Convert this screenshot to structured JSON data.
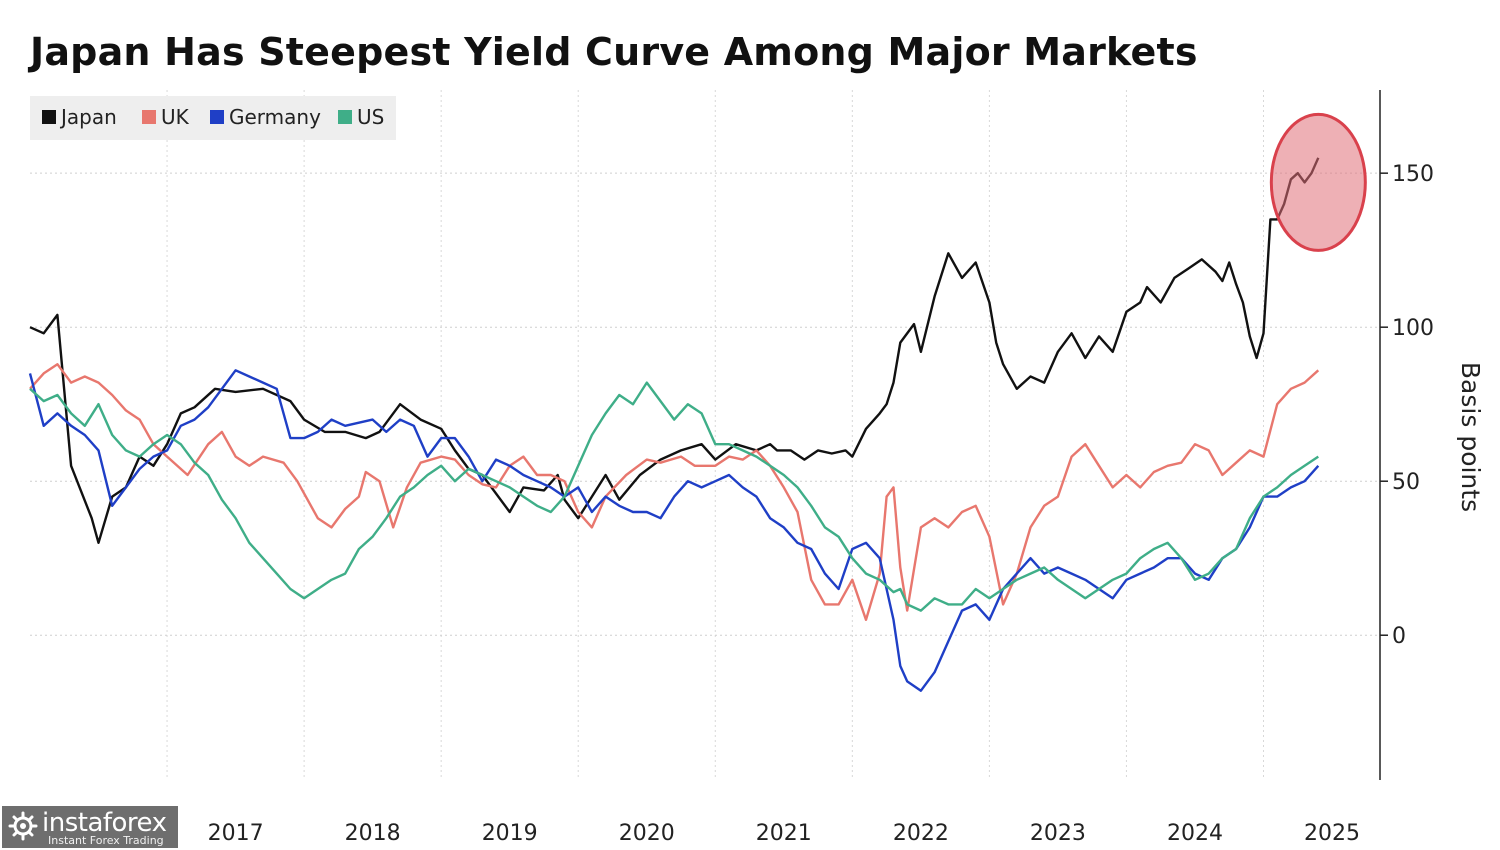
{
  "chart_data": {
    "type": "line",
    "title": "Japan Has Steepest Yield Curve Among Major Markets",
    "ylabel": "Basis points",
    "ylim": [
      -47,
      177
    ],
    "xlim": [
      2016.0,
      2025.85
    ],
    "y_ticks": [
      0,
      50,
      100,
      150
    ],
    "x_ticks": [
      "2017",
      "2018",
      "2019",
      "2020",
      "2021",
      "2022",
      "2023",
      "2024",
      "2025"
    ],
    "grid": true,
    "legend_position": "top-left",
    "y_axis_position": "right",
    "annotation": {
      "type": "circle",
      "x": 2025.4,
      "y": 147,
      "color": "#e07078"
    },
    "series": [
      {
        "name": "Japan",
        "color": "#111111",
        "x": [
          2016.0,
          2016.1,
          2016.2,
          2016.3,
          2016.45,
          2016.5,
          2016.6,
          2016.7,
          2016.8,
          2016.9,
          2017.0,
          2017.1,
          2017.2,
          2017.35,
          2017.5,
          2017.7,
          2017.9,
          2018.0,
          2018.15,
          2018.3,
          2018.45,
          2018.55,
          2018.7,
          2018.85,
          2019.0,
          2019.1,
          2019.2,
          2019.3,
          2019.5,
          2019.6,
          2019.75,
          2019.85,
          2019.9,
          2020.0,
          2020.1,
          2020.2,
          2020.3,
          2020.45,
          2020.6,
          2020.75,
          2020.9,
          2021.0,
          2021.15,
          2021.3,
          2021.4,
          2021.45,
          2021.55,
          2021.65,
          2021.75,
          2021.85,
          2021.95,
          2022.0,
          2022.1,
          2022.2,
          2022.25,
          2022.3,
          2022.35,
          2022.45,
          2022.5,
          2022.6,
          2022.7,
          2022.8,
          2022.9,
          2023.0,
          2023.05,
          2023.1,
          2023.2,
          2023.3,
          2023.4,
          2023.5,
          2023.6,
          2023.7,
          2023.8,
          2023.9,
          2024.0,
          2024.1,
          2024.15,
          2024.25,
          2024.35,
          2024.45,
          2024.55,
          2024.65,
          2024.7,
          2024.75,
          2024.8,
          2024.85,
          2024.9,
          2024.95,
          2025.0,
          2025.05,
          2025.1,
          2025.15,
          2025.2,
          2025.25,
          2025.3,
          2025.35,
          2025.4
        ],
        "y": [
          100,
          98,
          104,
          55,
          38,
          30,
          45,
          48,
          58,
          55,
          62,
          72,
          74,
          80,
          79,
          80,
          76,
          70,
          66,
          66,
          64,
          66,
          75,
          70,
          67,
          60,
          54,
          52,
          40,
          48,
          47,
          52,
          44,
          38,
          45,
          52,
          44,
          52,
          57,
          60,
          62,
          57,
          62,
          60,
          62,
          60,
          60,
          57,
          60,
          59,
          60,
          58,
          67,
          72,
          75,
          82,
          95,
          101,
          92,
          110,
          124,
          116,
          121,
          108,
          95,
          88,
          80,
          84,
          82,
          92,
          98,
          90,
          97,
          92,
          105,
          108,
          113,
          108,
          116,
          119,
          122,
          118,
          115,
          121,
          114,
          108,
          97,
          90,
          98,
          135,
          135,
          140,
          148,
          150,
          147,
          150,
          155
        ]
      },
      {
        "name": "UK",
        "color": "#e8776e",
        "x": [
          2016.0,
          2016.1,
          2016.2,
          2016.3,
          2016.4,
          2016.5,
          2016.6,
          2016.7,
          2016.8,
          2016.9,
          2017.0,
          2017.15,
          2017.3,
          2017.4,
          2017.5,
          2017.6,
          2017.7,
          2017.85,
          2017.95,
          2018.1,
          2018.2,
          2018.3,
          2018.4,
          2018.45,
          2018.55,
          2018.65,
          2018.75,
          2018.85,
          2019.0,
          2019.1,
          2019.2,
          2019.3,
          2019.4,
          2019.5,
          2019.6,
          2019.7,
          2019.8,
          2019.9,
          2020.0,
          2020.1,
          2020.2,
          2020.35,
          2020.5,
          2020.6,
          2020.75,
          2020.85,
          2021.0,
          2021.1,
          2021.2,
          2021.3,
          2021.4,
          2021.5,
          2021.6,
          2021.7,
          2021.8,
          2021.9,
          2022.0,
          2022.1,
          2022.2,
          2022.25,
          2022.3,
          2022.35,
          2022.4,
          2022.5,
          2022.6,
          2022.7,
          2022.8,
          2022.9,
          2023.0,
          2023.1,
          2023.2,
          2023.3,
          2023.4,
          2023.5,
          2023.6,
          2023.7,
          2023.8,
          2023.9,
          2024.0,
          2024.1,
          2024.2,
          2024.3,
          2024.4,
          2024.5,
          2024.6,
          2024.7,
          2024.8,
          2024.9,
          2025.0,
          2025.1,
          2025.2,
          2025.3,
          2025.4
        ],
        "y": [
          80,
          85,
          88,
          82,
          84,
          82,
          78,
          73,
          70,
          62,
          58,
          52,
          62,
          66,
          58,
          55,
          58,
          56,
          50,
          38,
          35,
          41,
          45,
          53,
          50,
          35,
          48,
          56,
          58,
          57,
          52,
          49,
          48,
          55,
          58,
          52,
          52,
          50,
          40,
          35,
          45,
          52,
          57,
          56,
          58,
          55,
          55,
          58,
          57,
          60,
          55,
          48,
          40,
          18,
          10,
          10,
          18,
          5,
          20,
          45,
          48,
          22,
          8,
          35,
          38,
          35,
          40,
          42,
          32,
          10,
          20,
          35,
          42,
          45,
          58,
          62,
          55,
          48,
          52,
          48,
          53,
          55,
          56,
          62,
          60,
          52,
          56,
          60,
          58,
          75,
          80,
          82,
          86
        ]
      },
      {
        "name": "Germany",
        "color": "#1f3fc6",
        "x": [
          2016.0,
          2016.1,
          2016.2,
          2016.3,
          2016.4,
          2016.5,
          2016.6,
          2016.7,
          2016.8,
          2016.9,
          2017.0,
          2017.1,
          2017.2,
          2017.3,
          2017.4,
          2017.5,
          2017.6,
          2017.7,
          2017.8,
          2017.9,
          2018.0,
          2018.1,
          2018.2,
          2018.3,
          2018.4,
          2018.5,
          2018.6,
          2018.7,
          2018.8,
          2018.9,
          2019.0,
          2019.1,
          2019.2,
          2019.3,
          2019.4,
          2019.5,
          2019.6,
          2019.7,
          2019.8,
          2019.9,
          2020.0,
          2020.1,
          2020.2,
          2020.3,
          2020.4,
          2020.5,
          2020.6,
          2020.7,
          2020.8,
          2020.9,
          2021.0,
          2021.1,
          2021.2,
          2021.3,
          2021.4,
          2021.5,
          2021.6,
          2021.7,
          2021.8,
          2021.9,
          2022.0,
          2022.1,
          2022.2,
          2022.3,
          2022.35,
          2022.4,
          2022.5,
          2022.6,
          2022.7,
          2022.8,
          2022.9,
          2023.0,
          2023.1,
          2023.2,
          2023.3,
          2023.4,
          2023.5,
          2023.6,
          2023.7,
          2023.8,
          2023.9,
          2024.0,
          2024.1,
          2024.2,
          2024.3,
          2024.4,
          2024.5,
          2024.6,
          2024.7,
          2024.8,
          2024.9,
          2025.0,
          2025.1,
          2025.2,
          2025.3,
          2025.4
        ],
        "y": [
          85,
          68,
          72,
          68,
          65,
          60,
          42,
          48,
          54,
          58,
          60,
          68,
          70,
          74,
          80,
          86,
          84,
          82,
          80,
          64,
          64,
          66,
          70,
          68,
          69,
          70,
          66,
          70,
          68,
          58,
          64,
          64,
          58,
          50,
          57,
          55,
          52,
          50,
          48,
          45,
          48,
          40,
          45,
          42,
          40,
          40,
          38,
          45,
          50,
          48,
          50,
          52,
          48,
          45,
          38,
          35,
          30,
          28,
          20,
          15,
          28,
          30,
          25,
          5,
          -10,
          -15,
          -18,
          -12,
          -2,
          8,
          10,
          5,
          15,
          20,
          25,
          20,
          22,
          20,
          18,
          15,
          12,
          18,
          20,
          22,
          25,
          25,
          20,
          18,
          25,
          28,
          35,
          45,
          45,
          48,
          50,
          55
        ]
      },
      {
        "name": "US",
        "color": "#3fae88",
        "x": [
          2016.0,
          2016.1,
          2016.2,
          2016.3,
          2016.4,
          2016.5,
          2016.6,
          2016.7,
          2016.8,
          2016.9,
          2017.0,
          2017.1,
          2017.2,
          2017.3,
          2017.4,
          2017.5,
          2017.6,
          2017.7,
          2017.8,
          2017.9,
          2018.0,
          2018.1,
          2018.2,
          2018.3,
          2018.4,
          2018.5,
          2018.6,
          2018.7,
          2018.8,
          2018.9,
          2019.0,
          2019.1,
          2019.2,
          2019.3,
          2019.4,
          2019.5,
          2019.6,
          2019.7,
          2019.8,
          2019.9,
          2020.0,
          2020.1,
          2020.2,
          2020.3,
          2020.4,
          2020.5,
          2020.6,
          2020.7,
          2020.8,
          2020.9,
          2021.0,
          2021.1,
          2021.2,
          2021.3,
          2021.4,
          2021.5,
          2021.6,
          2021.7,
          2021.8,
          2021.9,
          2022.0,
          2022.1,
          2022.2,
          2022.3,
          2022.35,
          2022.4,
          2022.5,
          2022.6,
          2022.7,
          2022.8,
          2022.9,
          2023.0,
          2023.1,
          2023.2,
          2023.3,
          2023.4,
          2023.5,
          2023.6,
          2023.7,
          2023.8,
          2023.9,
          2024.0,
          2024.1,
          2024.2,
          2024.3,
          2024.4,
          2024.5,
          2024.6,
          2024.7,
          2024.8,
          2024.9,
          2025.0,
          2025.1,
          2025.2,
          2025.3,
          2025.4
        ],
        "y": [
          80,
          76,
          78,
          72,
          68,
          75,
          65,
          60,
          58,
          62,
          65,
          62,
          56,
          52,
          44,
          38,
          30,
          25,
          20,
          15,
          12,
          15,
          18,
          20,
          28,
          32,
          38,
          45,
          48,
          52,
          55,
          50,
          54,
          52,
          50,
          48,
          45,
          42,
          40,
          45,
          55,
          65,
          72,
          78,
          75,
          82,
          76,
          70,
          75,
          72,
          62,
          62,
          60,
          58,
          55,
          52,
          48,
          42,
          35,
          32,
          25,
          20,
          18,
          14,
          15,
          10,
          8,
          12,
          10,
          10,
          15,
          12,
          15,
          18,
          20,
          22,
          18,
          15,
          12,
          15,
          18,
          20,
          25,
          28,
          30,
          25,
          18,
          20,
          25,
          28,
          38,
          45,
          48,
          52,
          55,
          58
        ]
      }
    ]
  },
  "watermark": {
    "brand": "instaforex",
    "tagline": "Instant Forex Trading"
  }
}
